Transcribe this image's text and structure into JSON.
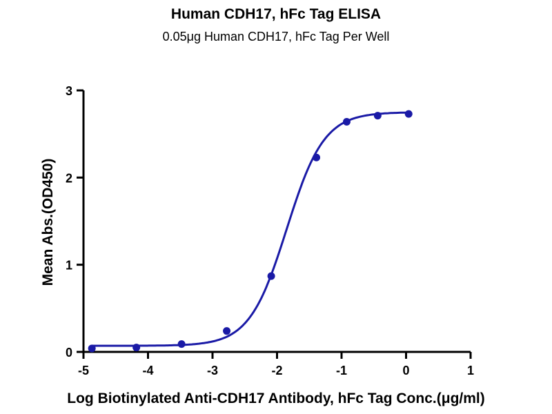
{
  "chart_data": {
    "type": "scatter",
    "title": "Human CDH17, hFc Tag ELISA",
    "subtitle": "0.05μg Human CDH17, hFc Tag Per Well",
    "xlabel": "Log Biotinylated Anti-CDH17 Antibody, hFc Tag Conc.(μg/ml)",
    "ylabel": "Mean Abs.(OD450)",
    "xlim": [
      -5,
      1
    ],
    "ylim": [
      0,
      3
    ],
    "xticks": [
      -5,
      -4,
      -3,
      -2,
      -1,
      0,
      1
    ],
    "yticks": [
      0,
      1,
      2,
      3
    ],
    "grid": false,
    "fit": "sigmoidal curve",
    "color": "#1a1aa6",
    "points": [
      {
        "x": -4.87,
        "y": 0.04
      },
      {
        "x": -4.18,
        "y": 0.05
      },
      {
        "x": -3.48,
        "y": 0.09
      },
      {
        "x": -2.78,
        "y": 0.24
      },
      {
        "x": -2.09,
        "y": 0.87
      },
      {
        "x": -1.39,
        "y": 2.23
      },
      {
        "x": -0.92,
        "y": 2.64
      },
      {
        "x": -0.44,
        "y": 2.71
      },
      {
        "x": 0.04,
        "y": 2.73
      }
    ]
  }
}
